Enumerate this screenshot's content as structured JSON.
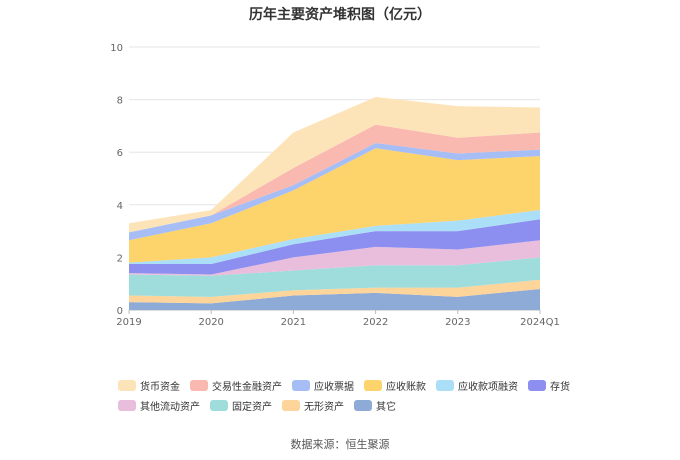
{
  "chart_data": {
    "type": "area",
    "stacked": true,
    "title": "历年主要资产堆积图（亿元）",
    "source": "数据来源：恒生聚源",
    "categories": [
      "2019",
      "2020",
      "2021",
      "2022",
      "2023",
      "2024Q1"
    ],
    "ylim": [
      0,
      10
    ],
    "yticks": [
      "0",
      "2",
      "4",
      "6",
      "8",
      "10"
    ],
    "legend_position": "bottom",
    "series": [
      {
        "name": "其它",
        "color": "#8eaad6",
        "values": [
          0.3,
          0.25,
          0.55,
          0.65,
          0.5,
          0.8
        ]
      },
      {
        "name": "无形资产",
        "color": "#fdd59a",
        "values": [
          0.25,
          0.25,
          0.2,
          0.2,
          0.35,
          0.35
        ]
      },
      {
        "name": "固定资产",
        "color": "#9fdcdc",
        "values": [
          0.8,
          0.8,
          0.75,
          0.85,
          0.85,
          0.85
        ]
      },
      {
        "name": "其他流动资产",
        "color": "#e9bedd",
        "values": [
          0.05,
          0.05,
          0.5,
          0.7,
          0.6,
          0.65
        ]
      },
      {
        "name": "存货",
        "color": "#8d8ff0",
        "values": [
          0.35,
          0.4,
          0.5,
          0.6,
          0.7,
          0.8
        ]
      },
      {
        "name": "应收款项融资",
        "color": "#aadff7",
        "values": [
          0.05,
          0.25,
          0.2,
          0.2,
          0.4,
          0.35
        ]
      },
      {
        "name": "应收账款",
        "color": "#fdd36b",
        "values": [
          0.85,
          1.3,
          1.85,
          2.95,
          2.3,
          2.05
        ]
      },
      {
        "name": "应收票据",
        "color": "#a6bef5",
        "values": [
          0.3,
          0.3,
          0.2,
          0.2,
          0.25,
          0.25
        ]
      },
      {
        "name": "交易性金融资产",
        "color": "#f9b8b0",
        "values": [
          0.0,
          0.0,
          0.65,
          0.7,
          0.6,
          0.65
        ]
      },
      {
        "name": "货币资金",
        "color": "#fde4b8",
        "values": [
          0.35,
          0.2,
          1.35,
          1.05,
          1.2,
          0.95
        ]
      }
    ],
    "legend_order": [
      "货币资金",
      "交易性金融资产",
      "应收票据",
      "应收账款",
      "应收款项融资",
      "存货",
      "其他流动资产",
      "固定资产",
      "无形资产",
      "其它"
    ]
  }
}
